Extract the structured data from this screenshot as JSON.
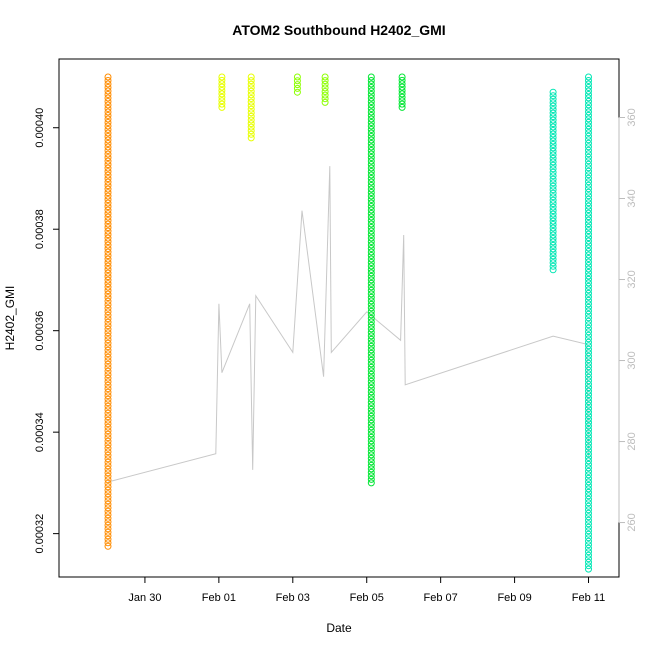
{
  "chart_data": {
    "type": "scatter",
    "title": "ATOM2 Southbound H2402_GMI",
    "xlabel": "Date",
    "ylabel": "H2402_GMI",
    "y2label": "",
    "xlim": [
      "2024-01-28",
      "2024-02-11 12:00"
    ],
    "ylim": [
      0.000315,
      0.00041
    ],
    "y2lim": [
      251,
      370
    ],
    "x_ticks": [
      "Jan 30",
      "Feb 01",
      "Feb 03",
      "Feb 05",
      "Feb 07",
      "Feb 09",
      "Feb 11"
    ],
    "y_ticks": [
      "0.00032",
      "0.00034",
      "0.00036",
      "0.00038",
      "0.00040"
    ],
    "y2_ticks": [
      "260",
      "280",
      "300",
      "320",
      "340",
      "360"
    ],
    "grid": false,
    "colors": {
      "seg_orange": "#ff8c00",
      "seg_yellow": "#e8ff00",
      "seg_lime": "#8cff00",
      "seg_green": "#00e633",
      "seg_cyan": "#00e6b4",
      "secondary_line": "#c8c8c8"
    },
    "series": [
      {
        "color": "seg_orange",
        "bands": [
          {
            "x": "2024-01-29 00:00",
            "ymin": 0.0003175,
            "ymax": 0.00041
          }
        ]
      },
      {
        "color": "seg_yellow",
        "bands": [
          {
            "x": "2024-02-01 02:00",
            "ymin": 0.000404,
            "ymax": 0.00041
          },
          {
            "x": "2024-02-01 21:00",
            "ymin": 0.000398,
            "ymax": 0.00041
          }
        ]
      },
      {
        "color": "seg_lime",
        "bands": [
          {
            "x": "2024-02-03 03:00",
            "ymin": 0.000407,
            "ymax": 0.00041
          },
          {
            "x": "2024-02-03 21:00",
            "ymin": 0.000405,
            "ymax": 0.00041
          }
        ]
      },
      {
        "color": "seg_green",
        "bands": [
          {
            "x": "2024-02-05 03:00",
            "ymin": 0.00033,
            "ymax": 0.00041
          },
          {
            "x": "2024-02-05 23:00",
            "ymin": 0.000404,
            "ymax": 0.00041
          }
        ]
      },
      {
        "color": "seg_cyan",
        "bands": [
          {
            "x": "2024-02-10 01:00",
            "ymin": 0.000372,
            "ymax": 0.000407
          },
          {
            "x": "2024-02-11 00:00",
            "ymin": 0.000313,
            "ymax": 0.00041
          }
        ]
      }
    ],
    "secondary": {
      "color": "secondary_line",
      "axis": "right",
      "points": [
        [
          "2024-01-29 00:00",
          270
        ],
        [
          "2024-02-00 22:00",
          277
        ],
        [
          "2024-02-01 00:00",
          314
        ],
        [
          "2024-02-01 02:00",
          297
        ],
        [
          "2024-02-01 20:00",
          314
        ],
        [
          "2024-02-01 22:00",
          273
        ],
        [
          "2024-02-02 00:00",
          316
        ],
        [
          "2024-02-03 00:00",
          302
        ],
        [
          "2024-02-03 06:00",
          337
        ],
        [
          "2024-02-03 20:00",
          296
        ],
        [
          "2024-02-04 00:00",
          348
        ],
        [
          "2024-02-04 01:00",
          302
        ],
        [
          "2024-02-05 00:00",
          312
        ],
        [
          "2024-02-05 22:00",
          305
        ],
        [
          "2024-02-06 00:00",
          331
        ],
        [
          "2024-02-06 01:00",
          294
        ],
        [
          "2024-02-10 01:00",
          306
        ],
        [
          "2024-02-10 23:00",
          304
        ],
        [
          "2024-02-11 00:00",
          276
        ]
      ]
    }
  }
}
